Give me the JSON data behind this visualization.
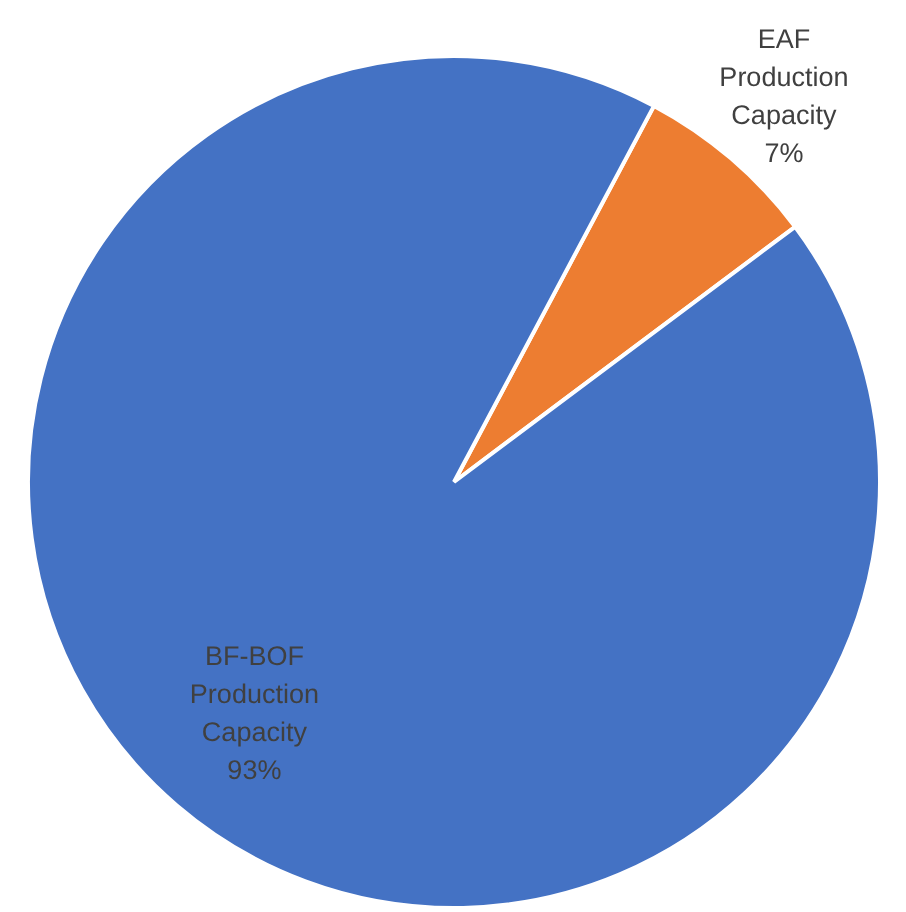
{
  "chart_data": {
    "type": "pie",
    "categories": [
      "EAF Production Capacity",
      "BF-BOF Production Capacity"
    ],
    "values": [
      7,
      93
    ],
    "colors": [
      "#ed7d31",
      "#4472c4"
    ],
    "value_labels": [
      "7%",
      "93%"
    ],
    "legend": false
  }
}
